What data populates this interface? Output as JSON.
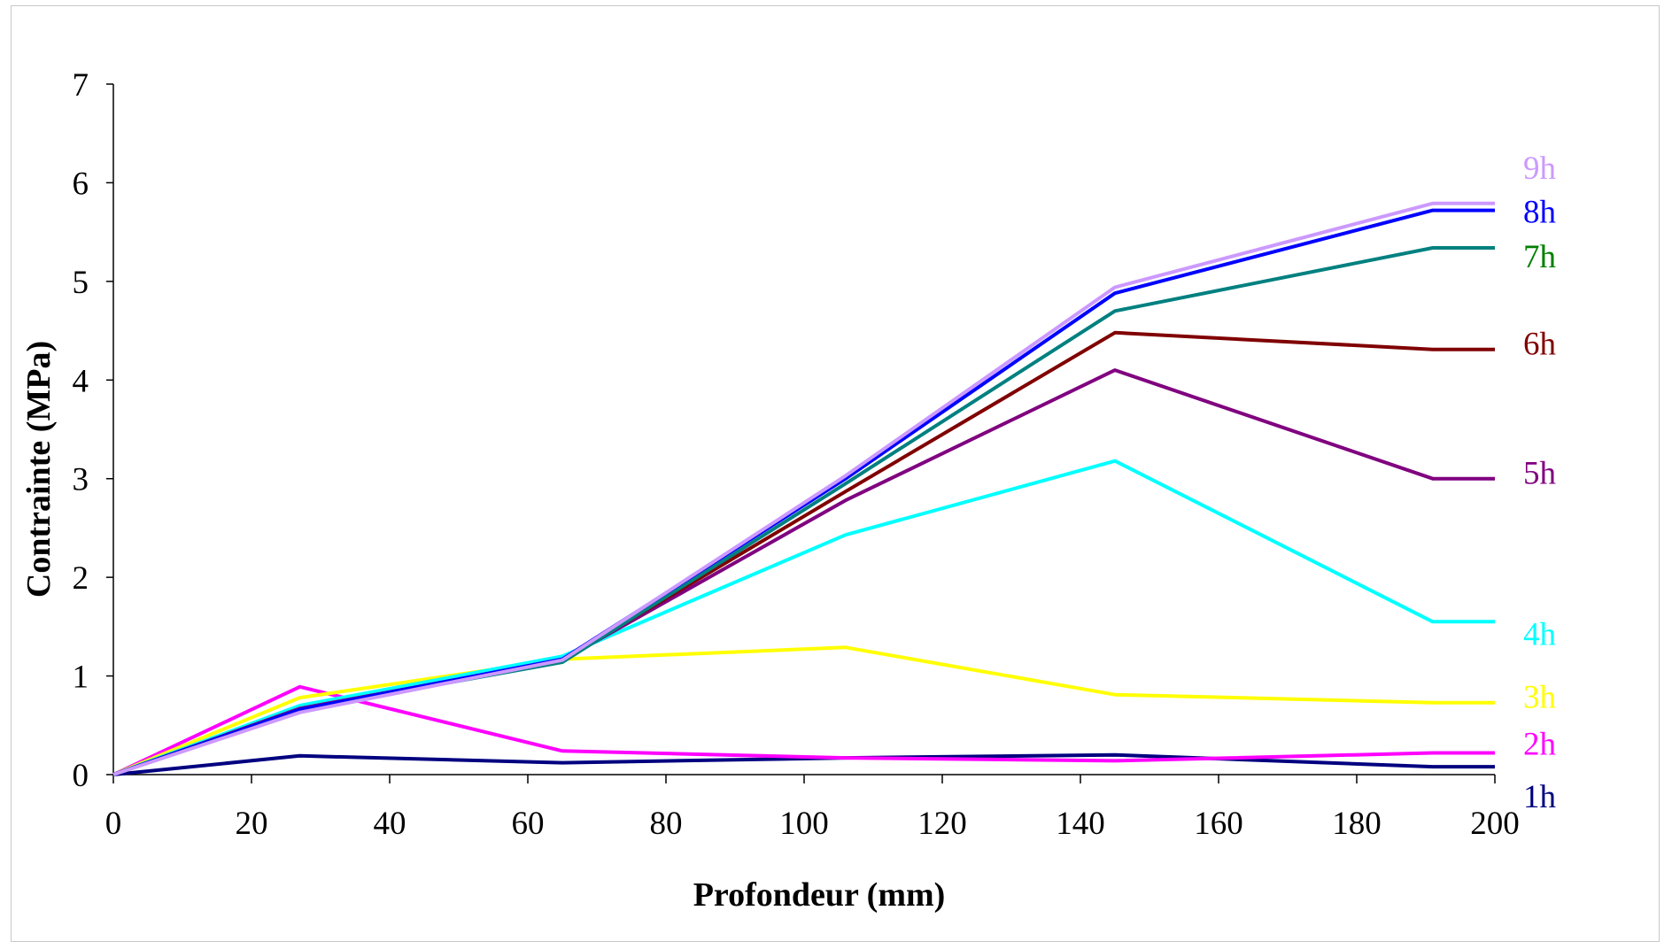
{
  "chart_data": {
    "type": "line",
    "xlabel": "Profondeur (mm)",
    "ylabel": "Contrainte (MPa)",
    "xlim": [
      0,
      200
    ],
    "ylim": [
      0,
      7
    ],
    "x_ticks": [
      0,
      20,
      40,
      60,
      80,
      100,
      120,
      140,
      160,
      180,
      200
    ],
    "y_ticks": [
      0,
      1,
      2,
      3,
      4,
      5,
      6,
      7
    ],
    "grid": false,
    "legend": "none",
    "x": [
      0,
      27,
      65,
      106,
      145,
      191,
      200
    ],
    "series": [
      {
        "name": "1h",
        "color": "#000080",
        "values": [
          0,
          0.19,
          0.12,
          0.17,
          0.2,
          0.08,
          0.08
        ]
      },
      {
        "name": "2h",
        "color": "#ff00ff",
        "values": [
          0,
          0.89,
          0.24,
          0.17,
          0.14,
          0.22,
          0.22
        ]
      },
      {
        "name": "3h",
        "color": "#ffff00",
        "values": [
          0,
          0.78,
          1.17,
          1.29,
          0.81,
          0.73,
          0.73
        ]
      },
      {
        "name": "4h",
        "color": "#00ffff",
        "values": [
          0,
          0.7,
          1.2,
          2.43,
          3.18,
          1.55,
          1.55
        ]
      },
      {
        "name": "5h",
        "color": "#800080",
        "values": [
          0,
          0.67,
          1.16,
          2.78,
          4.1,
          3.0,
          3.0
        ]
      },
      {
        "name": "6h",
        "color": "#800000",
        "values": [
          0,
          0.66,
          1.16,
          2.87,
          4.48,
          4.31,
          4.31
        ]
      },
      {
        "name": "7h",
        "color": "#008080",
        "label_color": "#008000",
        "values": [
          0,
          0.66,
          1.14,
          2.95,
          4.7,
          5.34,
          5.34
        ]
      },
      {
        "name": "8h",
        "color": "#0000ff",
        "values": [
          0,
          0.66,
          1.17,
          3.0,
          4.88,
          5.72,
          5.72
        ]
      },
      {
        "name": "9h",
        "color": "#cc99ff",
        "values": [
          0,
          0.63,
          1.16,
          3.03,
          4.94,
          5.79,
          5.79
        ]
      }
    ]
  }
}
